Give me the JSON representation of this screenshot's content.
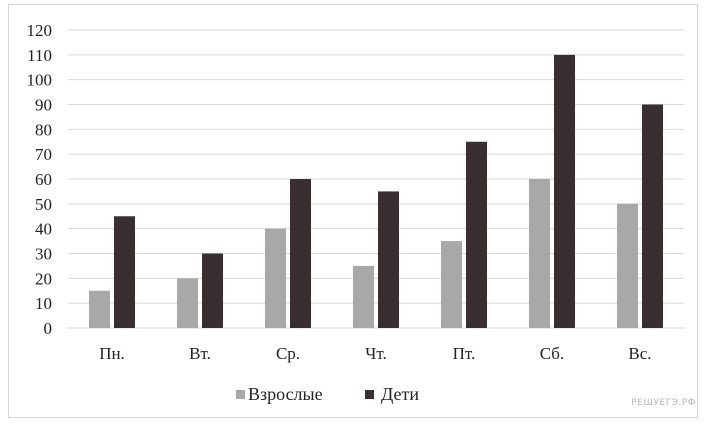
{
  "chart_data": {
    "type": "bar",
    "categories": [
      "Пн.",
      "Вт.",
      "Ср.",
      "Чт.",
      "Пт.",
      "Сб.",
      "Вс."
    ],
    "series": [
      {
        "name": "Взрослые",
        "values": [
          15,
          20,
          40,
          25,
          35,
          60,
          50
        ],
        "color": "#a9a7a7"
      },
      {
        "name": "Дети",
        "values": [
          45,
          30,
          60,
          55,
          75,
          110,
          90
        ],
        "color": "#3a2f30"
      }
    ],
    "ylim": [
      0,
      120
    ],
    "yticks": [
      0,
      10,
      20,
      30,
      40,
      50,
      60,
      70,
      80,
      90,
      100,
      110,
      120
    ],
    "grid": true,
    "legend_position": "bottom",
    "title": "",
    "xlabel": "",
    "ylabel": ""
  },
  "watermark": "РЕШУЕГЭ.РФ"
}
